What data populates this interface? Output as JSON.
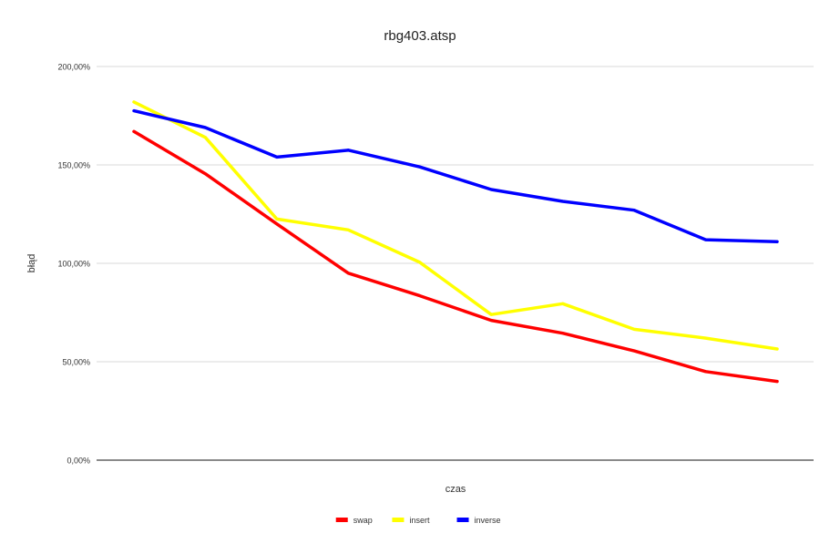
{
  "chart_data": {
    "type": "line",
    "title": "rbg403.atsp",
    "xlabel": "czas",
    "ylabel": "błąd",
    "ylim": [
      0,
      200
    ],
    "yticks": [
      0,
      50,
      100,
      150,
      200
    ],
    "ytick_labels": [
      "0,00%",
      "50,00%",
      "100,00%",
      "150,00%",
      "200,00%"
    ],
    "grid": true,
    "legend_position": "bottom",
    "x": [
      1,
      2,
      3,
      4,
      5,
      6,
      7,
      8,
      9,
      10
    ],
    "series": [
      {
        "name": "swap",
        "color": "#ff0000",
        "values": [
          167,
          145.5,
          120,
          95,
          83.5,
          71,
          64.5,
          55.5,
          45,
          40
        ]
      },
      {
        "name": "insert",
        "color": "#ffff00",
        "values": [
          182,
          164,
          122.5,
          117,
          100.5,
          74,
          79.5,
          66.5,
          62,
          56.5
        ]
      },
      {
        "name": "inverse",
        "color": "#0000ff",
        "values": [
          177.5,
          169,
          154,
          157.5,
          149,
          137.5,
          131.5,
          127,
          112,
          111
        ]
      }
    ]
  }
}
